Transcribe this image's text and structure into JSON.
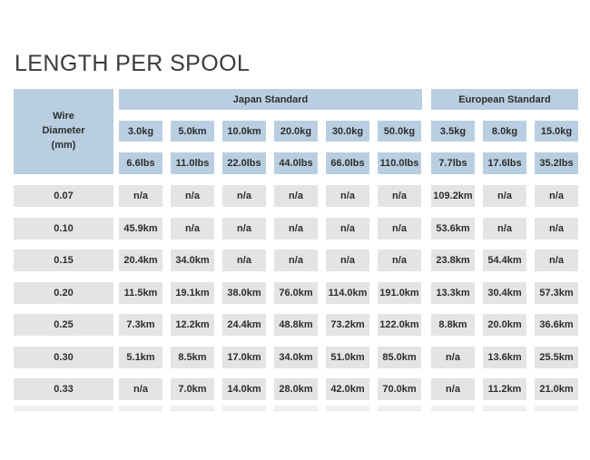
{
  "page": {
    "title": "LENGTH PER SPOOL"
  },
  "colors": {
    "header_blue": "#b9cfe1",
    "cell_gray": "#e4e4e4",
    "ghost_row": "#eef1f5",
    "text_dark": "#2d2d2d",
    "title_text": "#3b3b3b",
    "background": "#ffffff"
  },
  "chart_data": {
    "type": "table",
    "title": "LENGTH PER SPOOL",
    "row_header_label": "Wire\nDiameter\n(mm)",
    "column_groups": [
      {
        "label": "Japan Standard",
        "span": 6
      },
      {
        "label": "European Standard",
        "span": 3
      }
    ],
    "load_headers_kg": [
      "3.0kg",
      "5.0km",
      "10.0km",
      "20.0kg",
      "30.0kg",
      "50.0kg",
      "3.5kg",
      "8.0kg",
      "15.0kg"
    ],
    "load_headers_lbs": [
      "6.6lbs",
      "11.0lbs",
      "22.0lbs",
      "44.0lbs",
      "66.0lbs",
      "110.0lbs",
      "7.7lbs",
      "17.6lbs",
      "35.2lbs"
    ],
    "rows": [
      {
        "diameter": "0.07",
        "values": [
          "n/a",
          "n/a",
          "n/a",
          "n/a",
          "n/a",
          "n/a",
          "109.2km",
          "n/a",
          "n/a"
        ]
      },
      {
        "diameter": "0.10",
        "values": [
          "45.9km",
          "n/a",
          "n/a",
          "n/a",
          "n/a",
          "n/a",
          "53.6km",
          "n/a",
          "n/a"
        ]
      },
      {
        "diameter": "0.15",
        "values": [
          "20.4km",
          "34.0km",
          "n/a",
          "n/a",
          "n/a",
          "n/a",
          "23.8km",
          "54.4km",
          "n/a"
        ]
      },
      {
        "diameter": "0.20",
        "values": [
          "11.5km",
          "19.1km",
          "38.0km",
          "76.0km",
          "114.0km",
          "191.0km",
          "13.3km",
          "30.4km",
          "57.3km"
        ]
      },
      {
        "diameter": "0.25",
        "values": [
          "7.3km",
          "12.2km",
          "24.4km",
          "48.8km",
          "73.2km",
          "122.0km",
          "8.8km",
          "20.0km",
          "36.6km"
        ]
      },
      {
        "diameter": "0.30",
        "values": [
          "5.1km",
          "8.5km",
          "17.0km",
          "34.0km",
          "51.0km",
          "85.0km",
          "n/a",
          "13.6km",
          "25.5km"
        ]
      },
      {
        "diameter": "0.33",
        "values": [
          "n/a",
          "7.0km",
          "14.0km",
          "28.0km",
          "42.0km",
          "70.0km",
          "n/a",
          "11.2km",
          "21.0km"
        ]
      }
    ]
  }
}
